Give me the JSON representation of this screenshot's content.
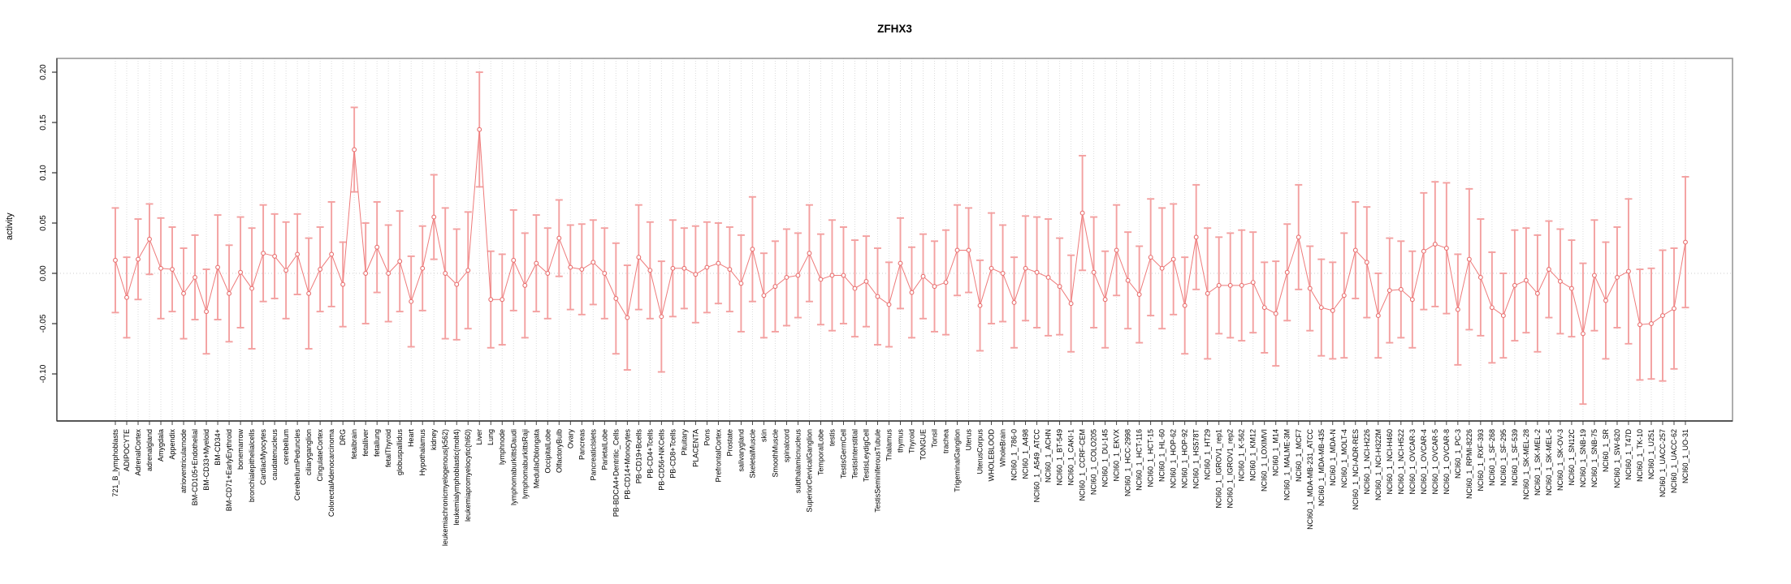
{
  "chart_data": {
    "type": "scatter",
    "subtype": "points-with-error-bars",
    "title": "ZFHX3",
    "xlabel": "",
    "ylabel": "activity",
    "ylim": [
      -0.147,
      0.214
    ],
    "ytick_values": [
      0.2,
      0.15,
      0.1,
      0.05,
      0.0,
      -0.05,
      -0.1
    ],
    "ytick_labels": [
      "0.20",
      "0.15",
      "0.10",
      "0.05",
      "0.00",
      "-0.05",
      "-0.10"
    ],
    "grid": "vertical-dotted",
    "zero_line": true,
    "legend": "none",
    "categories": [
      "721_B_lymphoblasts",
      "ADIPOCYTE",
      "AdrenalCortex",
      "adrenalgland",
      "Amygdala",
      "Appendix",
      "atrioventricularnode",
      "BM-CD105+Endothelial",
      "BM-CD33+Myeloid",
      "BM-CD34+",
      "BM-CD71+EarlyErythroid",
      "bonemarrow",
      "bronchialepithelialcells",
      "CardiacMyocytes",
      "caudatenucleus",
      "cerebellum",
      "CerebellumPeduncles",
      "ciliaryganglion",
      "CingulateCortex",
      "ColorectalAdenocarcinoma",
      "DRG",
      "fetalbrain",
      "fetalliver",
      "fetallung",
      "fetalThyroid",
      "globuspallidus",
      "Heart",
      "Hypothalamus",
      "kidney",
      "leukemiachronicmyelogenous(k562)",
      "leukemialymphoblastic(molt4)",
      "leukemiapromyelocytic(hl60)",
      "Liver",
      "Lung",
      "lymphnode",
      "lymphomaburkittsDaudi",
      "lymphomaburkittsRaji",
      "MedullaOblongata",
      "OccipitalLobe",
      "OlfactoryBulb",
      "Ovary",
      "Pancreas",
      "PancreaticIslets",
      "ParietalLobe",
      "PB-BDCA4+Dentritic_Cells",
      "PB-CD14+Monocytes",
      "PB-CD19+Bcells",
      "PB-CD4+Tcells",
      "PB-CD56+NKCells",
      "PB-CD8+Tcells",
      "Pituitary",
      "PLACENTA",
      "Pons",
      "PrefrontalCortex",
      "Prostate",
      "salivarygland",
      "SkeletalMuscle",
      "skin",
      "SmoothMuscle",
      "spinalcord",
      "subthalamicnucleus",
      "SuperiorCervicalGanglion",
      "TemporalLobe",
      "testis",
      "TestisGermCell",
      "TestisInterstitial",
      "TestisLeydigCell",
      "TestisSeminiferousTubule",
      "Thalamus",
      "thymus",
      "Thyroid",
      "TONGUE",
      "Tonsil",
      "trachea",
      "TrigeminalGanglion",
      "Uterus",
      "UterusCorpus",
      "WHOLEBLOOD",
      "WholeBrain",
      "NCI60_1_786-0",
      "NCI60_1_A498",
      "NCI60_1_A549_ATCC",
      "NCI60_1_ACHN",
      "NCI60_1_BT-549",
      "NCI60_1_CAKI-1",
      "NCI60_1_CCRF-CEM",
      "NCI60_1_COLO205",
      "NCI60_1_DU-145",
      "NCI60_1_EKVX",
      "NCI60_1_HCC-2998",
      "NCI60_1_HCT-116",
      "NCI60_1_HCT-15",
      "NCI60_1_HL-60",
      "NCI60_1_HOP-62",
      "NCI60_1_HOP-92",
      "NCI60_1_HS578T",
      "NCI60_1_HT29",
      "NCI60_1_IGROV1_rep1",
      "NCI60_1_IGROV1_rep2",
      "NCI60_1_K-562",
      "NCI60_1_KM12",
      "NCI60_1_LOXIMVI",
      "NCI60_1_M14",
      "NCI60_1_MALME-3M",
      "NCI60_1_MCF7",
      "NCI60_1_MDA-MB-231_ATCC",
      "NCI60_1_MDA-MB-435",
      "NCI60_1_MDA-N",
      "NCI60_1_MOLT-4",
      "NCI60_1_NCI-ADR-RES",
      "NCI60_1_NCI-H226",
      "NCI60_1_NCI-H322M",
      "NCI60_1_NCI-H460",
      "NCI60_1_NCI-H522",
      "NCI60_1_OVCAR-3",
      "NCI60_1_OVCAR-4",
      "NCI60_1_OVCAR-5",
      "NCI60_1_OVCAR-8",
      "NCI60_1_PC-3",
      "NCI60_1_RPMI-8226",
      "NCI60_1_RXF-393",
      "NCI60_1_SF-268",
      "NCI60_1_SF-295",
      "NCI60_1_SF-539",
      "NCI60_1_SK-MEL-28",
      "NCI60_1_SK-MEL-2",
      "NCI60_1_SK-MEL-5",
      "NCI60_1_SK-OV-3",
      "NCI60_1_SN12C",
      "NCI60_1_SNB-19",
      "NCI60_1_SNB-75",
      "NCI60_1_SR",
      "NCI60_1_SW-620",
      "NCI60_1_T47D",
      "NCI60_1_TK-10",
      "NCI60_1_U251",
      "NCI60_1_UACC-257",
      "NCI60_1_UACC-62",
      "NCI60_1_UO-31"
    ],
    "values": [
      0.013,
      -0.024,
      0.014,
      0.034,
      0.005,
      0.004,
      -0.02,
      -0.004,
      -0.038,
      0.006,
      -0.02,
      0.001,
      -0.015,
      0.02,
      0.017,
      0.003,
      0.019,
      -0.02,
      0.004,
      0.019,
      -0.011,
      0.123,
      0.0,
      0.026,
      0.0,
      0.012,
      -0.028,
      0.005,
      0.056,
      0.0,
      -0.011,
      0.003,
      0.143,
      -0.026,
      -0.026,
      0.013,
      -0.012,
      0.01,
      0.0,
      0.035,
      0.006,
      0.004,
      0.011,
      0.0,
      -0.025,
      -0.044,
      0.016,
      0.003,
      -0.043,
      0.005,
      0.005,
      -0.001,
      0.006,
      0.01,
      0.004,
      -0.01,
      0.024,
      -0.022,
      -0.013,
      -0.004,
      -0.002,
      0.02,
      -0.006,
      -0.002,
      -0.002,
      -0.015,
      -0.008,
      -0.023,
      -0.031,
      0.01,
      -0.019,
      -0.003,
      -0.013,
      -0.009,
      0.023,
      0.023,
      -0.032,
      0.005,
      0.0,
      -0.029,
      0.005,
      0.001,
      -0.004,
      -0.013,
      -0.03,
      0.06,
      0.001,
      -0.026,
      0.023,
      -0.007,
      -0.021,
      0.016,
      0.005,
      0.014,
      -0.032,
      0.036,
      -0.02,
      -0.012,
      -0.012,
      -0.012,
      -0.009,
      -0.034,
      -0.04,
      0.001,
      0.036,
      -0.015,
      -0.034,
      -0.037,
      -0.022,
      0.023,
      0.011,
      -0.042,
      -0.017,
      -0.016,
      -0.026,
      0.022,
      0.029,
      0.025,
      -0.036,
      0.014,
      -0.004,
      -0.034,
      -0.042,
      -0.012,
      -0.007,
      -0.02,
      0.004,
      -0.008,
      -0.015,
      -0.06,
      -0.002,
      -0.027,
      -0.004,
      0.002,
      -0.051,
      -0.05,
      -0.042,
      -0.035,
      0.031
    ],
    "errors": [
      0.052,
      0.04,
      0.04,
      0.035,
      0.05,
      0.042,
      0.045,
      0.042,
      0.042,
      0.052,
      0.048,
      0.055,
      0.06,
      0.048,
      0.042,
      0.048,
      0.04,
      0.055,
      0.042,
      0.052,
      0.042,
      0.042,
      0.05,
      0.045,
      0.048,
      0.05,
      0.045,
      0.042,
      0.042,
      0.065,
      0.055,
      0.058,
      0.057,
      0.048,
      0.045,
      0.05,
      0.052,
      0.048,
      0.045,
      0.038,
      0.042,
      0.045,
      0.042,
      0.045,
      0.055,
      0.052,
      0.052,
      0.048,
      0.055,
      0.048,
      0.04,
      0.048,
      0.045,
      0.04,
      0.042,
      0.048,
      0.052,
      0.042,
      0.045,
      0.048,
      0.042,
      0.048,
      0.045,
      0.055,
      0.048,
      0.048,
      0.045,
      0.048,
      0.042,
      0.045,
      0.045,
      0.042,
      0.045,
      0.052,
      0.045,
      0.042,
      0.045,
      0.055,
      0.048,
      0.045,
      0.052,
      0.055,
      0.058,
      0.048,
      0.048,
      0.057,
      0.055,
      0.048,
      0.045,
      0.048,
      0.048,
      0.058,
      0.06,
      0.055,
      0.048,
      0.052,
      0.065,
      0.048,
      0.052,
      0.055,
      0.05,
      0.045,
      0.052,
      0.048,
      0.052,
      0.042,
      0.048,
      0.048,
      0.062,
      0.048,
      0.055,
      0.042,
      0.052,
      0.048,
      0.048,
      0.058,
      0.062,
      0.065,
      0.055,
      0.07,
      0.058,
      0.055,
      0.042,
      0.055,
      0.052,
      0.058,
      0.048,
      0.052,
      0.048,
      0.07,
      0.055,
      0.058,
      0.05,
      0.072,
      0.055,
      0.055,
      0.065,
      0.06,
      0.065
    ],
    "colors": {
      "point": "#e87070",
      "line": "#ee7a7a",
      "errorbar": "#f3a0a0",
      "grid": "#dcdcdc",
      "zero_line": "#cccccc",
      "axis": "#333333",
      "box": "#9a9a9a",
      "title": "#000000",
      "tick_text": "#000000"
    }
  }
}
